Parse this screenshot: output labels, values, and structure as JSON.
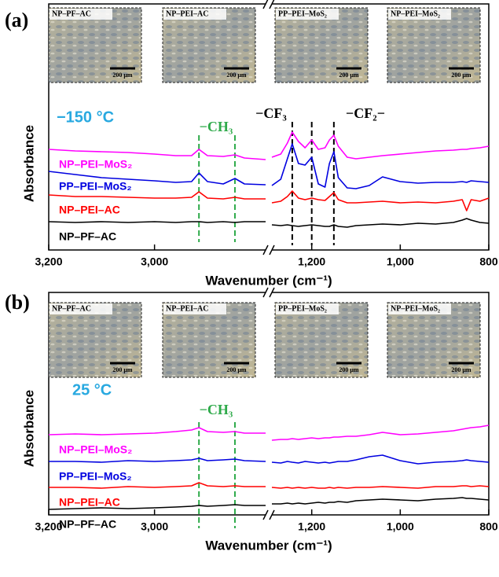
{
  "chart_data": [
    {
      "type": "line",
      "panel_label": "(a)",
      "x_label": "Wavenumber (cm⁻¹)",
      "y_label": "Absorbance",
      "xlim": [
        3200,
        800
      ],
      "xbreak": [
        2790,
        1290
      ],
      "xticks": [
        {
          "value": 3200,
          "label": "3,200"
        },
        {
          "value": 3000,
          "label": "3,000"
        },
        {
          "value": 1200,
          "label": "1,200"
        },
        {
          "value": 1000,
          "label": "1,000"
        },
        800
      ],
      "ylim": [
        0,
        10
      ],
      "insets": [
        {
          "label": "NP–PF–AC",
          "scale": "200 μm"
        },
        {
          "label": "NP–PEI–AC",
          "scale": "200 μm"
        },
        {
          "label": "PP–PEI–MoS₂",
          "scale": "200 μm"
        },
        {
          "label": "NP–PEI–MoS₂",
          "scale": "200 μm"
        }
      ],
      "annotations": [
        {
          "text": "−150 °C",
          "color": "#29a9e0"
        },
        {
          "text": "−CH₃",
          "color": "#2eaa4a"
        },
        {
          "text": "−CF₃",
          "color": "#000000"
        },
        {
          "text": "−CF₂−",
          "color": "#000000"
        }
      ],
      "vlines": [
        {
          "x": 2916,
          "color": "#2eaa4a"
        },
        {
          "x": 2848,
          "color": "#2eaa4a"
        },
        {
          "x": 1244,
          "color": "#000000"
        },
        {
          "x": 1200,
          "color": "#000000"
        },
        {
          "x": 1150,
          "color": "#000000"
        }
      ],
      "x": [
        3200,
        3150,
        3100,
        3050,
        3000,
        2960,
        2930,
        2916,
        2900,
        2870,
        2848,
        2830,
        2790,
        1290,
        1270,
        1255,
        1244,
        1230,
        1215,
        1200,
        1185,
        1170,
        1160,
        1150,
        1140,
        1120,
        1100,
        1070,
        1040,
        1000,
        960,
        920,
        880,
        860,
        850,
        840,
        820,
        800
      ],
      "series": [
        {
          "name": "NP–PEI–MoS₂",
          "color": "#ff00ff",
          "values": [
            6.4,
            6.3,
            6.25,
            6.2,
            6.1,
            6.0,
            6.0,
            6.4,
            6.0,
            5.95,
            6.05,
            5.85,
            5.75,
            5.9,
            6.1,
            6.8,
            7.5,
            6.9,
            6.5,
            7.0,
            6.4,
            6.5,
            7.0,
            7.3,
            6.6,
            5.9,
            5.8,
            5.9,
            6.0,
            6.1,
            6.2,
            6.3,
            6.35,
            6.4,
            6.4,
            6.45,
            6.5,
            6.6
          ]
        },
        {
          "name": "PP–PEI–MoS₂",
          "color": "#0000e0",
          "values": [
            5.0,
            4.8,
            4.6,
            4.5,
            4.4,
            4.3,
            4.35,
            4.9,
            4.35,
            4.2,
            4.55,
            4.2,
            4.15,
            4.1,
            4.5,
            5.8,
            6.75,
            5.5,
            5.4,
            5.9,
            4.2,
            4.0,
            5.5,
            6.25,
            4.6,
            3.95,
            3.9,
            4.1,
            4.65,
            4.35,
            4.25,
            4.3,
            4.3,
            4.35,
            4.3,
            4.4,
            4.35,
            4.3
          ]
        },
        {
          "name": "NP–PEI–AC",
          "color": "#ff0000",
          "values": [
            3.5,
            3.4,
            3.4,
            3.35,
            3.3,
            3.3,
            3.35,
            3.7,
            3.3,
            3.25,
            3.35,
            3.25,
            3.25,
            3.0,
            3.1,
            3.4,
            3.75,
            3.3,
            3.2,
            3.3,
            3.2,
            3.15,
            3.4,
            3.65,
            3.2,
            3.0,
            3.0,
            3.05,
            3.1,
            3.0,
            3.05,
            3.0,
            3.1,
            3.2,
            2.5,
            3.2,
            3.1,
            3.3
          ]
        },
        {
          "name": "NP–PF–AC",
          "color": "#000000",
          "values": [
            1.8,
            1.75,
            1.8,
            1.75,
            1.8,
            1.75,
            1.8,
            1.8,
            1.75,
            1.8,
            1.75,
            1.8,
            1.8,
            1.6,
            1.55,
            1.6,
            1.55,
            1.5,
            1.55,
            1.6,
            1.55,
            1.5,
            1.5,
            1.6,
            1.5,
            1.45,
            1.55,
            1.6,
            1.65,
            1.6,
            1.7,
            1.65,
            1.75,
            1.9,
            2.0,
            1.9,
            1.75,
            1.7
          ]
        }
      ]
    },
    {
      "type": "line",
      "panel_label": "(b)",
      "x_label": "Wavenumber (cm⁻¹)",
      "y_label": "Absorbance",
      "xlim": [
        3200,
        800
      ],
      "xbreak": [
        2790,
        1290
      ],
      "xticks": [
        {
          "value": 3200,
          "label": "3,200"
        },
        {
          "value": 3000,
          "label": "3,000"
        },
        {
          "value": 1200,
          "label": "1,200"
        },
        {
          "value": 1000,
          "label": "1,000"
        },
        800
      ],
      "ylim": [
        0,
        10
      ],
      "insets": [
        {
          "label": "NP–PF–AC",
          "scale": "200 μm"
        },
        {
          "label": "NP–PEI–AC",
          "scale": "200 μm"
        },
        {
          "label": "PP–PEI–MoS₂",
          "scale": "200 μm"
        },
        {
          "label": "NP–PEI–MoS₂",
          "scale": "200 μm"
        }
      ],
      "annotations": [
        {
          "text": "25 °C",
          "color": "#29a9e0"
        },
        {
          "text": "−CH₃",
          "color": "#2eaa4a"
        }
      ],
      "vlines": [
        {
          "x": 2916,
          "color": "#2eaa4a"
        },
        {
          "x": 2848,
          "color": "#2eaa4a"
        }
      ],
      "x": [
        3200,
        3150,
        3100,
        3050,
        3000,
        2960,
        2930,
        2916,
        2900,
        2870,
        2848,
        2830,
        2790,
        1290,
        1270,
        1255,
        1244,
        1230,
        1215,
        1200,
        1185,
        1170,
        1160,
        1150,
        1140,
        1120,
        1100,
        1070,
        1040,
        1000,
        960,
        920,
        880,
        860,
        850,
        840,
        820,
        800
      ],
      "series": [
        {
          "name": "NP–PEI–MoS₂",
          "color": "#ff00ff",
          "values": [
            5.1,
            5.15,
            5.1,
            5.15,
            5.2,
            5.3,
            5.4,
            5.55,
            5.3,
            5.25,
            5.3,
            5.2,
            5.2,
            4.75,
            4.8,
            4.8,
            4.85,
            4.8,
            4.85,
            4.9,
            4.85,
            4.9,
            4.9,
            4.95,
            4.95,
            5.0,
            5.0,
            5.1,
            5.25,
            5.1,
            5.15,
            5.25,
            5.35,
            5.45,
            5.5,
            5.55,
            5.6,
            5.7
          ]
        },
        {
          "name": "PP–PEI–MoS₂",
          "color": "#0000e0",
          "values": [
            3.4,
            3.4,
            3.35,
            3.45,
            3.4,
            3.45,
            3.5,
            3.6,
            3.45,
            3.5,
            3.55,
            3.45,
            3.4,
            3.35,
            3.3,
            3.4,
            3.35,
            3.3,
            3.4,
            3.35,
            3.3,
            3.35,
            3.3,
            3.35,
            3.4,
            3.4,
            3.5,
            3.7,
            3.8,
            3.45,
            3.25,
            3.35,
            3.4,
            3.45,
            3.5,
            3.45,
            3.4,
            3.35
          ]
        },
        {
          "name": "NP–PEI–AC",
          "color": "#ff0000",
          "values": [
            1.75,
            1.75,
            1.7,
            1.8,
            1.75,
            1.8,
            1.85,
            2.05,
            1.85,
            1.8,
            1.85,
            1.8,
            1.8,
            1.75,
            1.7,
            1.75,
            1.7,
            1.75,
            1.7,
            1.75,
            1.7,
            1.7,
            1.75,
            1.7,
            1.75,
            1.7,
            1.75,
            1.75,
            1.8,
            1.75,
            1.7,
            1.8,
            1.8,
            1.85,
            1.85,
            1.8,
            1.85,
            1.8
          ]
        },
        {
          "name": "NP–PF–AC",
          "color": "#000000",
          "values": [
            0.35,
            0.4,
            0.45,
            0.4,
            0.45,
            0.5,
            0.55,
            0.6,
            0.55,
            0.6,
            0.65,
            0.6,
            0.6,
            0.7,
            0.7,
            0.75,
            0.7,
            0.75,
            0.7,
            0.75,
            0.8,
            0.75,
            0.8,
            0.8,
            0.85,
            0.8,
            0.9,
            0.95,
            1.0,
            0.95,
            0.9,
            1.0,
            1.05,
            1.1,
            1.05,
            1.05,
            1.0,
            0.95
          ]
        }
      ]
    }
  ]
}
